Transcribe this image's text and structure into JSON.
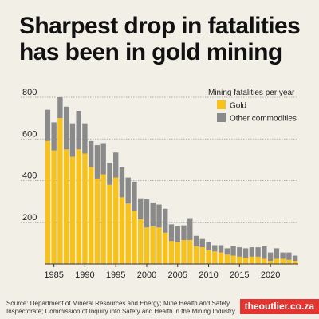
{
  "title_line1": "Sharpest drop in fatalities",
  "title_line2": "has been in gold mining",
  "source": "Source: Department of Mineral Resources and Energy; Mine Health and Safety Inspectorate; Commission of Inquiry into Safety and Health in the Mining Industry",
  "brand": "theoutlier.co.za",
  "colors": {
    "gold": "#f8c21c",
    "other": "#8a8a8a",
    "brand": "#e3342f"
  },
  "chart_data": {
    "type": "bar",
    "stacked": true,
    "legend_title": "Mining fatalities per year",
    "legend_position": "top-right",
    "x": [
      1984,
      1985,
      1986,
      1987,
      1988,
      1989,
      1990,
      1991,
      1992,
      1993,
      1994,
      1995,
      1996,
      1997,
      1998,
      1999,
      2000,
      2001,
      2002,
      2003,
      2004,
      2005,
      2006,
      2007,
      2008,
      2009,
      2010,
      2011,
      2012,
      2013,
      2014,
      2015,
      2016,
      2017,
      2018,
      2019,
      2020,
      2021,
      2022,
      2023,
      2024
    ],
    "series": [
      {
        "name": "Gold",
        "color": "#f8c21c",
        "values": [
          590,
          545,
          700,
          550,
          515,
          550,
          530,
          465,
          410,
          430,
          380,
          415,
          320,
          290,
          255,
          215,
          175,
          180,
          175,
          150,
          110,
          105,
          115,
          115,
          85,
          80,
          65,
          60,
          55,
          45,
          40,
          35,
          30,
          35,
          35,
          25,
          15,
          25,
          25,
          20,
          15
        ]
      },
      {
        "name": "Other commodities",
        "color": "#8a8a8a",
        "values": [
          150,
          135,
          100,
          205,
          160,
          185,
          145,
          125,
          160,
          150,
          105,
          120,
          145,
          125,
          140,
          100,
          135,
          115,
          110,
          115,
          80,
          75,
          70,
          105,
          50,
          40,
          40,
          30,
          35,
          30,
          45,
          45,
          45,
          45,
          45,
          60,
          40,
          50,
          30,
          35,
          25
        ]
      }
    ],
    "xticks": [
      1985,
      1990,
      1995,
      2000,
      2005,
      2010,
      2015,
      2020
    ],
    "yticks": [
      200,
      400,
      600,
      800
    ],
    "ylim": [
      0,
      800
    ],
    "grid": true
  }
}
